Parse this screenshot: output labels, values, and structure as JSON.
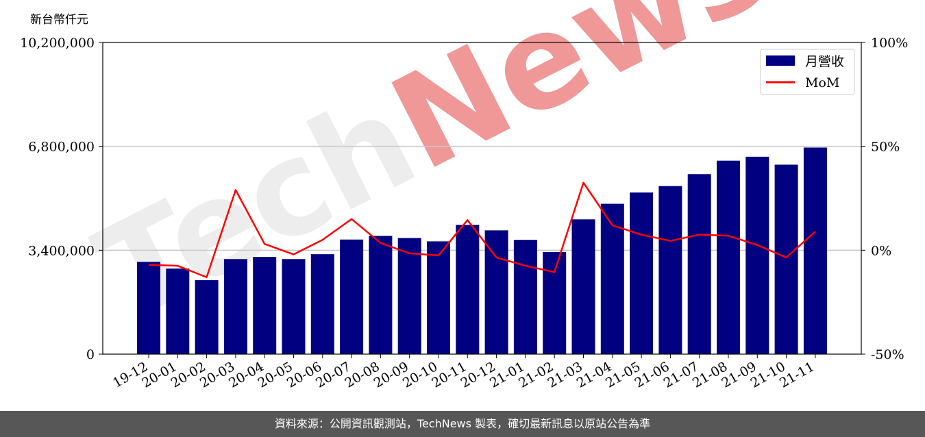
{
  "chart_data": {
    "type": "bar",
    "ylabel": "新台幣仟元",
    "watermark": "TechNews",
    "categories": [
      "19-12",
      "20-01",
      "20-02",
      "20-03",
      "20-04",
      "20-05",
      "20-06",
      "20-07",
      "20-08",
      "20-09",
      "20-10",
      "20-11",
      "20-12",
      "21-01",
      "21-02",
      "21-03",
      "21-04",
      "21-05",
      "21-06",
      "21-07",
      "21-08",
      "21-09",
      "21-10",
      "21-11"
    ],
    "series": [
      {
        "name": "月營收",
        "type": "bar",
        "axis": "left",
        "color": "#000080",
        "values": [
          3020000,
          2800000,
          2420000,
          3110000,
          3180000,
          3110000,
          3270000,
          3750000,
          3870000,
          3800000,
          3690000,
          4230000,
          4050000,
          3740000,
          3340000,
          4410000,
          4920000,
          5290000,
          5500000,
          5890000,
          6330000,
          6460000,
          6200000,
          6760000
        ]
      },
      {
        "name": "MoM",
        "type": "line",
        "axis": "right",
        "color": "#ff0000",
        "values": [
          -7,
          -7.5,
          -13,
          29,
          3,
          -2,
          5,
          15,
          3.5,
          -1.5,
          -2.5,
          14.5,
          -3.5,
          -7.5,
          -10.5,
          32.5,
          12,
          7.5,
          4.5,
          7.5,
          7,
          2.5,
          -3.5,
          9
        ]
      }
    ],
    "ylim": [
      0,
      10200000
    ],
    "yticks": [
      "0",
      "3,400,000",
      "6,800,000",
      "10,200,000"
    ],
    "ytick_values": [
      0,
      3400000,
      6800000,
      10200000
    ],
    "y2lim": [
      -50,
      100
    ],
    "y2ticks": [
      "-50%",
      "0%",
      "50%",
      "100%"
    ],
    "y2tick_values": [
      -50,
      0,
      50,
      100
    ],
    "grid": "horizontal",
    "legend": "top-right"
  },
  "footer_text": "資料來源：公開資訊觀測站，TechNews 製表，確切最新訊息以原站公告為準"
}
